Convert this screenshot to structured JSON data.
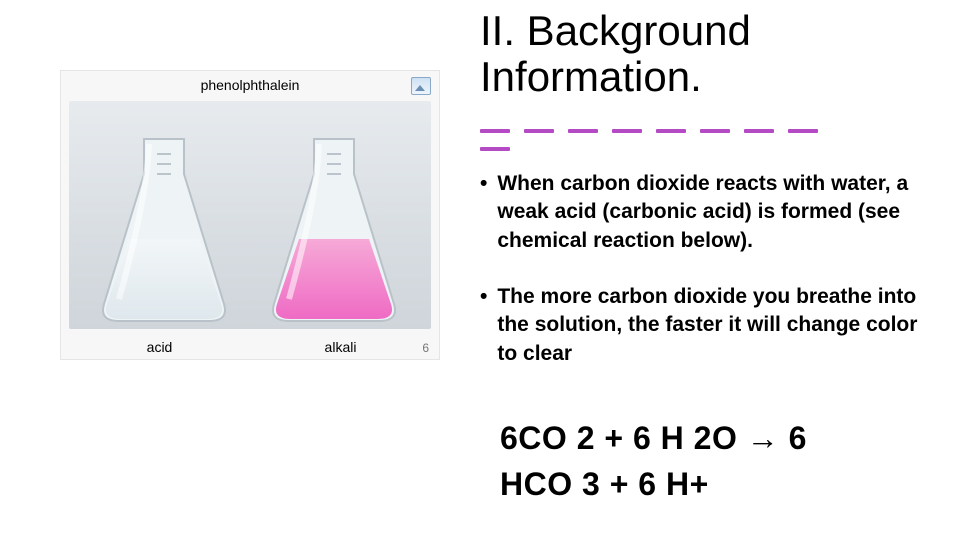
{
  "title": "II. Background Information.",
  "underline": {
    "dash_count": 9,
    "color": "#b44bc4"
  },
  "bullets": {
    "b1": "When carbon dioxide reacts with water, a weak acid (carbonic acid) is formed (see chemical reaction below).",
    "b2": "The more carbon dioxide you breathe into the solution, the faster it will change color to clear"
  },
  "equation": {
    "line1": "6CO 2 + 6 H 2O → 6",
    "line2": "HCO 3 + 6 H+"
  },
  "photo": {
    "top_label": "phenolphthalein",
    "left_label": "acid",
    "right_label": "alkali",
    "page_num": "6",
    "bench_bg": "#dde2e7",
    "flask_glass_stroke": "#b9c2c9",
    "flask_glass_fill": "#e7edf1",
    "liquid_clear_top": "#f2f6f8",
    "liquid_clear_bottom": "#dfe8ed",
    "liquid_pink_top": "#f6a9d7",
    "liquid_pink_bottom": "#ef6bc4",
    "grad_stroke": "#9aa6af"
  },
  "colors": {
    "text": "#000000",
    "background": "#ffffff"
  }
}
